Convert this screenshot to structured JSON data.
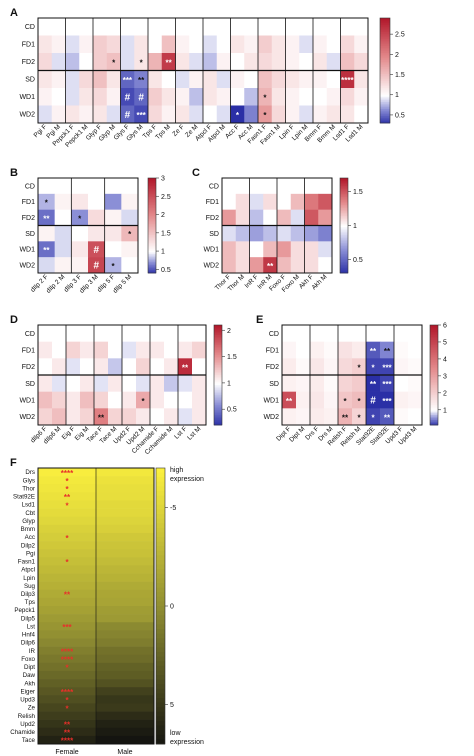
{
  "chart_data": [
    {
      "panel": "A",
      "type": "heatmap",
      "rows": [
        "CD",
        "FD1",
        "FD2",
        "SD",
        "WD1",
        "WD2"
      ],
      "columns": [
        "Pgi F",
        "Pgi M",
        "Pepck1 F",
        "Pepck1 M",
        "Glyp F",
        "Glyp M",
        "Glys F",
        "Glys M",
        "Tps F",
        "Tps M",
        "Ze F",
        "Ze M",
        "Atpcl F",
        "Atpcl M",
        "Acc F",
        "Acc M",
        "Fasn1 F",
        "Fasn1 M",
        "Lpin F",
        "Lpin M",
        "Bmm F",
        "Bmm M",
        "Lsd1 F",
        "Lsd1 M"
      ],
      "values": [
        [
          1,
          1,
          1,
          1,
          1,
          1,
          1,
          1,
          1,
          1,
          1,
          1,
          1,
          1,
          1,
          1,
          1,
          1,
          1,
          1,
          1,
          1,
          1,
          1
        ],
        [
          1.2,
          1.1,
          0.9,
          1.1,
          1.4,
          1.3,
          0.9,
          1.2,
          1.0,
          1.5,
          1.1,
          1.0,
          0.9,
          1.0,
          1.2,
          1.1,
          1.4,
          1.2,
          1.1,
          0.9,
          1.1,
          1.0,
          1.3,
          1.1
        ],
        [
          1.3,
          0.9,
          0.8,
          1.0,
          1.4,
          1.5,
          0.9,
          1.2,
          1.6,
          2.6,
          1.2,
          0.9,
          0.8,
          1.1,
          1.0,
          1.2,
          1.3,
          1.2,
          1.1,
          1.0,
          1.2,
          0.9,
          1.5,
          1.3
        ],
        [
          1.2,
          1.1,
          0.9,
          1.3,
          1.5,
          1.2,
          0.5,
          0.6,
          1.2,
          1.0,
          0.9,
          1.1,
          1.2,
          0.9,
          1.1,
          1.0,
          1.5,
          1.3,
          1.2,
          1.1,
          1.1,
          1.0,
          2.7,
          1.2
        ],
        [
          1.1,
          1.0,
          0.9,
          1.2,
          1.3,
          1.1,
          0.4,
          0.5,
          1.4,
          1.2,
          1.1,
          0.8,
          1.2,
          1.1,
          1.0,
          0.8,
          1.6,
          1.2,
          1.1,
          1.0,
          1.0,
          1.1,
          1.3,
          1.1
        ],
        [
          0.9,
          1.1,
          1.2,
          1.1,
          1.2,
          0.9,
          0.5,
          0.4,
          1.3,
          1.1,
          1.2,
          0.9,
          1.0,
          0.9,
          0.3,
          0.6,
          1.8,
          1.3,
          1.1,
          0.9,
          1.1,
          1.2,
          1.2,
          1.0
        ]
      ],
      "annotations": [
        {
          "row": 2,
          "col": 5,
          "text": "*"
        },
        {
          "row": 2,
          "col": 7,
          "text": "*"
        },
        {
          "row": 2,
          "col": 9,
          "text": "**"
        },
        {
          "row": 3,
          "col": 6,
          "text": "***"
        },
        {
          "row": 3,
          "col": 7,
          "text": "**"
        },
        {
          "row": 3,
          "col": 22,
          "text": "****"
        },
        {
          "row": 4,
          "col": 6,
          "text": "#"
        },
        {
          "row": 4,
          "col": 7,
          "text": "#"
        },
        {
          "row": 4,
          "col": 16,
          "text": "*"
        },
        {
          "row": 5,
          "col": 6,
          "text": "#"
        },
        {
          "row": 5,
          "col": 7,
          "text": "***"
        },
        {
          "row": 5,
          "col": 14,
          "text": "*"
        },
        {
          "row": 5,
          "col": 16,
          "text": "*"
        }
      ],
      "colorbar": {
        "min": 0.3,
        "max": 2.9,
        "center": 1,
        "ticks": [
          2.5,
          2.0,
          1.5,
          1.0,
          0.5
        ]
      }
    },
    {
      "panel": "B",
      "type": "heatmap",
      "rows": [
        "CD",
        "FD1",
        "FD2",
        "SD",
        "WD1",
        "WD2"
      ],
      "columns": [
        "dIlp 2 F",
        "dIlp 2 M",
        "dIlp 3 F",
        "dIlp 3 M",
        "dIlp 5 F",
        "dIlp 5 M"
      ],
      "values": [
        [
          1,
          1,
          1,
          1,
          1,
          1
        ],
        [
          0.8,
          1.1,
          1.2,
          1.0,
          0.7,
          1.1
        ],
        [
          0.6,
          1.0,
          0.7,
          1.3,
          1.1,
          0.9
        ],
        [
          1.1,
          0.9,
          1.0,
          1.2,
          1.2,
          1.6
        ],
        [
          0.6,
          0.9,
          1.2,
          2.5,
          1.0,
          1.1
        ],
        [
          0.9,
          1.1,
          1.1,
          2.6,
          0.8,
          1.0
        ]
      ],
      "annotations": [
        {
          "row": 1,
          "col": 0,
          "text": "*"
        },
        {
          "row": 2,
          "col": 0,
          "text": "**"
        },
        {
          "row": 2,
          "col": 2,
          "text": "*"
        },
        {
          "row": 3,
          "col": 5,
          "text": "*"
        },
        {
          "row": 4,
          "col": 0,
          "text": "**"
        },
        {
          "row": 4,
          "col": 3,
          "text": "#"
        },
        {
          "row": 5,
          "col": 3,
          "text": "#"
        },
        {
          "row": 5,
          "col": 4,
          "text": "*"
        }
      ],
      "colorbar": {
        "min": 0.4,
        "max": 3.0,
        "center": 1,
        "ticks": [
          3.0,
          2.5,
          2.0,
          1.5,
          1.0,
          0.5
        ]
      }
    },
    {
      "panel": "C",
      "type": "heatmap",
      "rows": [
        "CD",
        "FD1",
        "FD2",
        "SD",
        "WD1",
        "WD2"
      ],
      "columns": [
        "Thor F",
        "Thor M",
        "InR F",
        "InR M",
        "Foxo F",
        "Foxo M",
        "Akh F",
        "Akh M"
      ],
      "values": [
        [
          1,
          1,
          1,
          1,
          1,
          1,
          1,
          1
        ],
        [
          1.0,
          1.1,
          0.9,
          1.1,
          1.0,
          1.2,
          1.4,
          1.5
        ],
        [
          1.3,
          1.1,
          0.8,
          1.0,
          1.2,
          0.9,
          1.5,
          1.3
        ],
        [
          0.9,
          0.8,
          0.7,
          0.8,
          0.9,
          0.8,
          0.7,
          0.6
        ],
        [
          1.2,
          1.1,
          1.0,
          1.2,
          1.3,
          1.1,
          1.1,
          0.9
        ],
        [
          1.2,
          1.1,
          1.3,
          1.6,
          1.2,
          1.1,
          1.1,
          1.0
        ]
      ],
      "annotations": [
        {
          "row": 5,
          "col": 3,
          "text": "**"
        }
      ],
      "colorbar": {
        "min": 0.3,
        "max": 1.7,
        "center": 1,
        "ticks": [
          1.5,
          1.0,
          0.5
        ]
      }
    },
    {
      "panel": "D",
      "type": "heatmap",
      "rows": [
        "CD",
        "FD1",
        "FD2",
        "SD",
        "WD1",
        "WD2"
      ],
      "columns": [
        "dIlp6 F",
        "dIlp6 M",
        "Eig F",
        "Eig M",
        "Tace F",
        "Tace M",
        "Upd2 F",
        "Upd2 M",
        "Cchamide F",
        "Cchamide M",
        "Lst F",
        "Lst M"
      ],
      "values": [
        [
          1,
          1,
          1,
          1,
          1,
          1,
          1,
          1,
          1,
          1,
          1,
          1
        ],
        [
          1.1,
          1.0,
          1.2,
          1.1,
          1.2,
          1.0,
          0.9,
          1.1,
          1.1,
          1.0,
          1.1,
          1.2
        ],
        [
          1.0,
          1.1,
          0.9,
          1.0,
          1.1,
          0.8,
          1.0,
          1.2,
          1.0,
          1.1,
          2.0,
          1.0
        ],
        [
          1.1,
          0.9,
          1.0,
          1.1,
          0.9,
          1.1,
          1.0,
          0.9,
          1.1,
          0.8,
          0.9,
          1.1
        ],
        [
          1.3,
          1.2,
          1.1,
          1.3,
          1.2,
          1.0,
          1.1,
          1.4,
          1.1,
          1.0,
          1.0,
          1.1
        ],
        [
          1.2,
          1.3,
          1.1,
          1.2,
          1.6,
          1.2,
          1.2,
          1.1,
          1.0,
          1.1,
          0.9,
          1.1
        ]
      ],
      "annotations": [
        {
          "row": 2,
          "col": 10,
          "text": "**"
        },
        {
          "row": 4,
          "col": 7,
          "text": "*"
        },
        {
          "row": 5,
          "col": 4,
          "text": "**"
        }
      ],
      "colorbar": {
        "min": 0.2,
        "max": 2.1,
        "center": 1,
        "ticks": [
          2.0,
          1.5,
          1.0,
          0.5
        ]
      }
    },
    {
      "panel": "E",
      "type": "heatmap",
      "rows": [
        "CD",
        "FD1",
        "FD2",
        "SD",
        "WD1",
        "WD2"
      ],
      "columns": [
        "Dipt F",
        "Dipt M",
        "Drs F",
        "Drs M",
        "Relish F",
        "Relish M",
        "Stat92E",
        "Stat92E",
        "Upd3 F",
        "Upd3 M"
      ],
      "values": [
        [
          1,
          1,
          1,
          1,
          1,
          1,
          1,
          1,
          1,
          1
        ],
        [
          1.2,
          1.0,
          1.3,
          1.1,
          1.6,
          1.4,
          0.3,
          0.5,
          1.1,
          1.0
        ],
        [
          1.4,
          1.1,
          1.5,
          1.2,
          1.8,
          2.0,
          0.2,
          0.2,
          1.2,
          1.1
        ],
        [
          1.3,
          1.2,
          1.4,
          1.1,
          1.9,
          2.1,
          0.1,
          0.2,
          1.0,
          1.1
        ],
        [
          4.8,
          1.3,
          1.5,
          1.2,
          2.2,
          2.4,
          0.1,
          0.1,
          1.3,
          1.2
        ],
        [
          1.3,
          1.2,
          1.4,
          1.3,
          2.6,
          1.9,
          0.2,
          0.3,
          1.1,
          1.0
        ]
      ],
      "annotations": [
        {
          "row": 1,
          "col": 6,
          "text": "**"
        },
        {
          "row": 1,
          "col": 7,
          "text": "**"
        },
        {
          "row": 2,
          "col": 5,
          "text": "*"
        },
        {
          "row": 2,
          "col": 6,
          "text": "*"
        },
        {
          "row": 2,
          "col": 7,
          "text": "***"
        },
        {
          "row": 3,
          "col": 6,
          "text": "**"
        },
        {
          "row": 3,
          "col": 7,
          "text": "***"
        },
        {
          "row": 4,
          "col": 0,
          "text": "**"
        },
        {
          "row": 4,
          "col": 4,
          "text": "*"
        },
        {
          "row": 4,
          "col": 5,
          "text": "*"
        },
        {
          "row": 4,
          "col": 6,
          "text": "#"
        },
        {
          "row": 4,
          "col": 7,
          "text": "***"
        },
        {
          "row": 5,
          "col": 4,
          "text": "**"
        },
        {
          "row": 5,
          "col": 5,
          "text": "*"
        },
        {
          "row": 5,
          "col": 6,
          "text": "*"
        },
        {
          "row": 5,
          "col": 7,
          "text": "**"
        }
      ],
      "colorbar": {
        "min": 0.1,
        "max": 6.0,
        "center": 1,
        "ticks": [
          6,
          5,
          4,
          3,
          2,
          1
        ]
      }
    },
    {
      "panel": "F",
      "type": "heatmap",
      "rows": [
        "Drs",
        "Glys",
        "Thor",
        "Stat92E",
        "Lsd1",
        "Cbt",
        "Glyp",
        "Bmm",
        "Acc",
        "Dilp2",
        "Pgi",
        "Fasn1",
        "Atpcl",
        "Lpin",
        "Sug",
        "Dilp3",
        "Tps",
        "Pepck1",
        "Dilp5",
        "Lst",
        "Hnf4",
        "Dilp6",
        "IR",
        "Foxo",
        "Dipt",
        "Daw",
        "Akh",
        "Eiger",
        "Upd3",
        "Ze",
        "Relish",
        "Upd2",
        "Chamide",
        "Tace"
      ],
      "columns": [
        "Female",
        "Male"
      ],
      "values": [
        [
          -6.8,
          -6.4
        ],
        [
          -6.5,
          -6.0
        ],
        [
          -6.3,
          -5.8
        ],
        [
          -6.0,
          -5.7
        ],
        [
          -5.8,
          -5.4
        ],
        [
          -5.5,
          -5.3
        ],
        [
          -5.2,
          -5.0
        ],
        [
          -4.8,
          -4.7
        ],
        [
          -4.5,
          -4.2
        ],
        [
          -4.2,
          -3.9
        ],
        [
          -3.8,
          -3.7
        ],
        [
          -3.5,
          -3.3
        ],
        [
          -3.2,
          -2.9
        ],
        [
          -2.8,
          -2.6
        ],
        [
          -2.5,
          -2.1
        ],
        [
          -2.1,
          -1.8
        ],
        [
          -1.8,
          -1.6
        ],
        [
          -1.4,
          -1.1
        ],
        [
          -1.0,
          -0.9
        ],
        [
          -0.6,
          0.2
        ],
        [
          -0.2,
          0.5
        ],
        [
          0.3,
          0.9
        ],
        [
          0.8,
          1.6
        ],
        [
          1.2,
          1.9
        ],
        [
          1.6,
          2.5
        ],
        [
          2.1,
          2.8
        ],
        [
          2.6,
          3.4
        ],
        [
          3.1,
          4.4
        ],
        [
          3.6,
          5.0
        ],
        [
          4.1,
          4.8
        ],
        [
          4.6,
          5.6
        ],
        [
          5.1,
          6.2
        ],
        [
          5.6,
          6.6
        ],
        [
          6.2,
          7.0
        ]
      ],
      "annotations": [
        {
          "row": 0,
          "col": 0,
          "text": "****"
        },
        {
          "row": 1,
          "col": 0,
          "text": "*"
        },
        {
          "row": 2,
          "col": 0,
          "text": "*"
        },
        {
          "row": 3,
          "col": 0,
          "text": "**"
        },
        {
          "row": 4,
          "col": 0,
          "text": "*"
        },
        {
          "row": 8,
          "col": 0,
          "text": "*"
        },
        {
          "row": 11,
          "col": 0,
          "text": "*"
        },
        {
          "row": 15,
          "col": 0,
          "text": "**"
        },
        {
          "row": 19,
          "col": 0,
          "text": "***"
        },
        {
          "row": 22,
          "col": 0,
          "text": "****"
        },
        {
          "row": 23,
          "col": 0,
          "text": "****"
        },
        {
          "row": 24,
          "col": 0,
          "text": "*"
        },
        {
          "row": 27,
          "col": 0,
          "text": "****"
        },
        {
          "row": 28,
          "col": 0,
          "text": "*"
        },
        {
          "row": 29,
          "col": 0,
          "text": "*"
        },
        {
          "row": 31,
          "col": 0,
          "text": "**"
        },
        {
          "row": 32,
          "col": 0,
          "text": "**"
        },
        {
          "row": 33,
          "col": 0,
          "text": "****"
        }
      ],
      "colorbar": {
        "min": -7,
        "max": 7,
        "ticks": [
          -5,
          0,
          5
        ],
        "top_label": "high expression",
        "bottom_label": "low expression",
        "reversed": true
      }
    }
  ]
}
